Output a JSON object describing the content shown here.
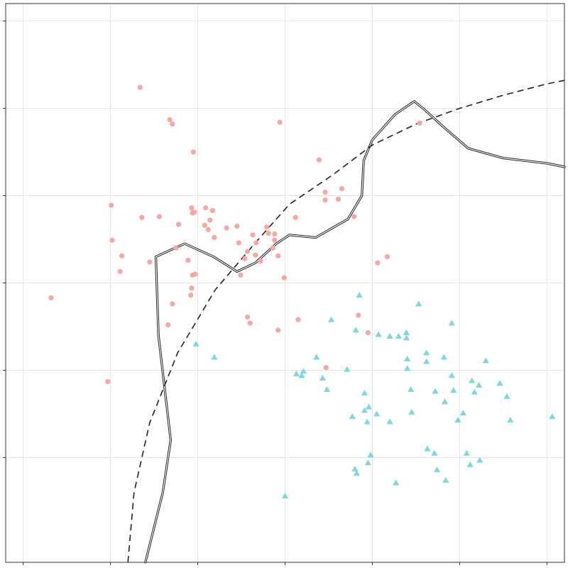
{
  "chart_data": {
    "type": "scatter",
    "title": "",
    "xlabel": "",
    "ylabel": "",
    "xlim": [
      -3.2,
      3.2
    ],
    "ylim": [
      -3.2,
      3.2
    ],
    "x_gridlines": [
      -3,
      -2,
      -1,
      0,
      1,
      2,
      3
    ],
    "y_gridlines": [
      -2,
      -1,
      0,
      1,
      2,
      3
    ],
    "grid": true,
    "legend": "none",
    "colors": {
      "class_a": "#F8A7A2",
      "class_b": "#7DD9DE",
      "boundary": "#222222",
      "grid": "#E6E6E6",
      "axis": "#333333"
    },
    "series": [
      {
        "marker": "circle",
        "points": [
          [
            -1.66,
            2.24
          ],
          [
            -1.32,
            1.87
          ],
          [
            -1.29,
            1.82
          ],
          [
            -0.06,
            1.84
          ],
          [
            -1.05,
            1.5
          ],
          [
            1.54,
            1.83
          ],
          [
            0.39,
            1.41
          ],
          [
            0.65,
            1.08
          ],
          [
            0.46,
            1.04
          ],
          [
            0.46,
            0.95
          ],
          [
            0.61,
            0.96
          ],
          [
            -1.07,
            0.86
          ],
          [
            -0.83,
            0.83
          ],
          [
            -1.04,
            0.81
          ],
          [
            -1.06,
            0.8
          ],
          [
            -0.86,
            0.72
          ],
          [
            0.12,
            0.75
          ],
          [
            0.79,
            0.76
          ],
          [
            -0.91,
            0.86
          ],
          [
            -0.92,
            0.66
          ],
          [
            -1.44,
            0.76
          ],
          [
            -1.64,
            0.75
          ],
          [
            -1.22,
            0.67
          ],
          [
            -1.25,
            0.4
          ],
          [
            -0.67,
            0.63
          ],
          [
            -0.55,
            0.65
          ],
          [
            -0.88,
            0.61
          ],
          [
            -0.81,
            0.52
          ],
          [
            -0.12,
            0.56
          ],
          [
            -0.21,
            0.64
          ],
          [
            -1.99,
            0.89
          ],
          [
            -1.98,
            0.49
          ],
          [
            -1.87,
            0.31
          ],
          [
            -1.89,
            0.13
          ],
          [
            -0.53,
            0.46
          ],
          [
            -0.19,
            0.57
          ],
          [
            -0.37,
            0.55
          ],
          [
            -0.12,
            0.49
          ],
          [
            -0.34,
            0.32
          ],
          [
            -0.14,
            0.4
          ],
          [
            -0.08,
            0.31
          ],
          [
            -0.28,
            0.25
          ],
          [
            -0.33,
            0.46
          ],
          [
            -0.43,
            0.36
          ],
          [
            -0.46,
            0.28
          ],
          [
            1.17,
            0.3
          ],
          [
            1.06,
            0.23
          ],
          [
            -1.11,
            0.26
          ],
          [
            -1.03,
            0.1
          ],
          [
            -1.55,
            0.24
          ],
          [
            -1.07,
            -0.06
          ],
          [
            -1.06,
            0.09
          ],
          [
            -1.08,
            -0.14
          ],
          [
            -0.51,
            0.09
          ],
          [
            -0.01,
            0.06
          ],
          [
            -2.68,
            -0.17
          ],
          [
            -1.29,
            -0.24
          ],
          [
            -0.43,
            -0.39
          ],
          [
            -0.08,
            -0.54
          ],
          [
            -0.4,
            -0.46
          ],
          [
            0.15,
            -0.42
          ],
          [
            0.84,
            -0.37
          ],
          [
            -1.34,
            -0.48
          ],
          [
            0.95,
            -0.57
          ],
          [
            -2.03,
            -1.13
          ],
          [
            0.47,
            -0.97
          ]
        ]
      },
      {
        "marker": "triangle",
        "points": [
          [
            0.85,
            -0.14
          ],
          [
            1.53,
            -0.24
          ],
          [
            1.39,
            -0.57
          ],
          [
            1.3,
            -0.61
          ],
          [
            1.39,
            -0.63
          ],
          [
            1.91,
            -0.46
          ],
          [
            0.81,
            -0.54
          ],
          [
            1.07,
            -0.59
          ],
          [
            1.62,
            -0.8
          ],
          [
            1.82,
            -0.85
          ],
          [
            1.2,
            -0.61
          ],
          [
            1.4,
            -0.87
          ],
          [
            1.4,
            -0.98
          ],
          [
            -1.02,
            -0.7
          ],
          [
            -0.81,
            -0.85
          ],
          [
            0.53,
            -0.42
          ],
          [
            0.21,
            -1.01
          ],
          [
            0.13,
            -1.04
          ],
          [
            0.36,
            -0.85
          ],
          [
            0.19,
            -1.06
          ],
          [
            1.44,
            -1.22
          ],
          [
            1.93,
            -1.23
          ],
          [
            1.62,
            -0.9
          ],
          [
            2.14,
            -1.12
          ],
          [
            1.91,
            -1.06
          ],
          [
            1.72,
            -1.24
          ],
          [
            0.77,
            -1.53
          ],
          [
            0.71,
            -0.99
          ],
          [
            0.96,
            -1.42
          ],
          [
            2.17,
            -1.25
          ],
          [
            2.3,
            -0.89
          ],
          [
            2.22,
            -1.17
          ],
          [
            0.43,
            -1.09
          ],
          [
            0.48,
            -1.22
          ],
          [
            0.91,
            -1.26
          ],
          [
            1.83,
            -1.36
          ],
          [
            2.46,
            -1.15
          ],
          [
            2.54,
            -1.3
          ],
          [
            2.04,
            -1.49
          ],
          [
            1.05,
            -1.5
          ],
          [
            0.91,
            -1.46
          ],
          [
            1.45,
            -1.48
          ],
          [
            0.94,
            -1.59
          ],
          [
            1.98,
            -1.57
          ],
          [
            1.2,
            -1.59
          ],
          [
            2.58,
            -1.57
          ],
          [
            3.06,
            -1.53
          ],
          [
            1.63,
            -1.9
          ],
          [
            1.71,
            -1.95
          ],
          [
            2.08,
            -1.95
          ],
          [
            2.12,
            -2.08
          ],
          [
            0.0,
            -2.44
          ],
          [
            0.98,
            -1.97
          ],
          [
            1.27,
            -2.29
          ],
          [
            2.23,
            -2.03
          ],
          [
            0.8,
            -2.13
          ],
          [
            0.82,
            -2.18
          ],
          [
            0.95,
            -2.06
          ],
          [
            1.74,
            -2.14
          ],
          [
            1.84,
            -2.26
          ]
        ]
      }
    ],
    "boundaries": [
      {
        "style": "solid-double",
        "points": [
          [
            -1.6,
            -3.2
          ],
          [
            -1.4,
            -2.4
          ],
          [
            -1.31,
            -1.8
          ],
          [
            -1.45,
            -0.6
          ],
          [
            -1.48,
            0.3
          ],
          [
            -1.15,
            0.45
          ],
          [
            -0.82,
            0.3
          ],
          [
            -0.55,
            0.13
          ],
          [
            -0.34,
            0.23
          ],
          [
            -0.1,
            0.45
          ],
          [
            0.05,
            0.55
          ],
          [
            0.35,
            0.52
          ],
          [
            0.72,
            0.73
          ],
          [
            0.88,
            1.0
          ],
          [
            0.9,
            1.4
          ],
          [
            1.0,
            1.64
          ],
          [
            1.26,
            1.93
          ],
          [
            1.48,
            2.08
          ],
          [
            1.58,
            2.0
          ],
          [
            1.8,
            1.8
          ],
          [
            2.1,
            1.54
          ],
          [
            2.5,
            1.43
          ],
          [
            3.0,
            1.37
          ],
          [
            3.2,
            1.33
          ]
        ]
      },
      {
        "style": "dashed",
        "points": [
          [
            -1.8,
            -3.2
          ],
          [
            -1.73,
            -2.4
          ],
          [
            -1.55,
            -1.6
          ],
          [
            -1.23,
            -0.8
          ],
          [
            -0.8,
            -0.08
          ],
          [
            -0.35,
            0.45
          ],
          [
            0.05,
            0.9
          ],
          [
            0.55,
            1.24
          ],
          [
            1.0,
            1.58
          ],
          [
            1.5,
            1.82
          ],
          [
            2.0,
            2.0
          ],
          [
            2.5,
            2.15
          ],
          [
            3.0,
            2.28
          ],
          [
            3.2,
            2.32
          ]
        ]
      }
    ]
  }
}
